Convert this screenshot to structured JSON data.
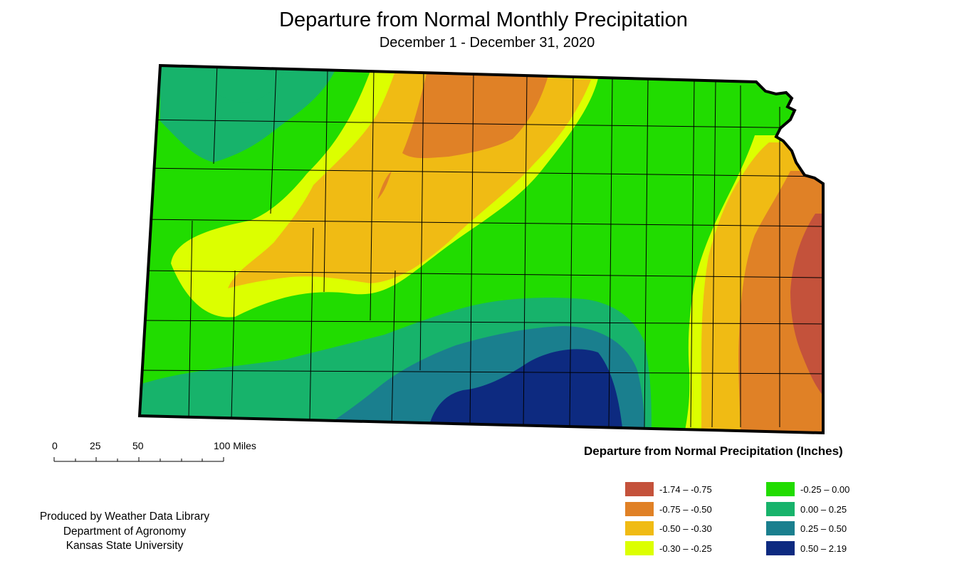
{
  "title": "Departure from Normal Monthly Precipitation",
  "subtitle": "December 1 - December 31, 2020",
  "scale_bar": {
    "ticks": [
      "0",
      "25",
      "50",
      "100 Miles"
    ]
  },
  "credits": [
    "Produced by Weather Data Library",
    "Department of Agronomy",
    "Kansas State University"
  ],
  "legend": {
    "title": "Departure from Normal Precipitation (Inches)",
    "items": [
      {
        "label": "-1.74 – -0.75",
        "color": "#c4523b"
      },
      {
        "label": "-0.75 – -0.50",
        "color": "#e08126"
      },
      {
        "label": "-0.50 – -0.30",
        "color": "#f0bb14"
      },
      {
        "label": "-0.30 – -0.25",
        "color": "#dcff00"
      },
      {
        "label": "-0.25 – 0.00",
        "color": "#21dc00"
      },
      {
        "label": "0.00 – 0.25",
        "color": "#17b36b"
      },
      {
        "label": "0.25 – 0.50",
        "color": "#1a7f8e"
      },
      {
        "label": "0.50 – 2.19",
        "color": "#0d2a80"
      }
    ]
  },
  "map": {
    "region": "Kansas",
    "boundary_color": "#000000"
  }
}
